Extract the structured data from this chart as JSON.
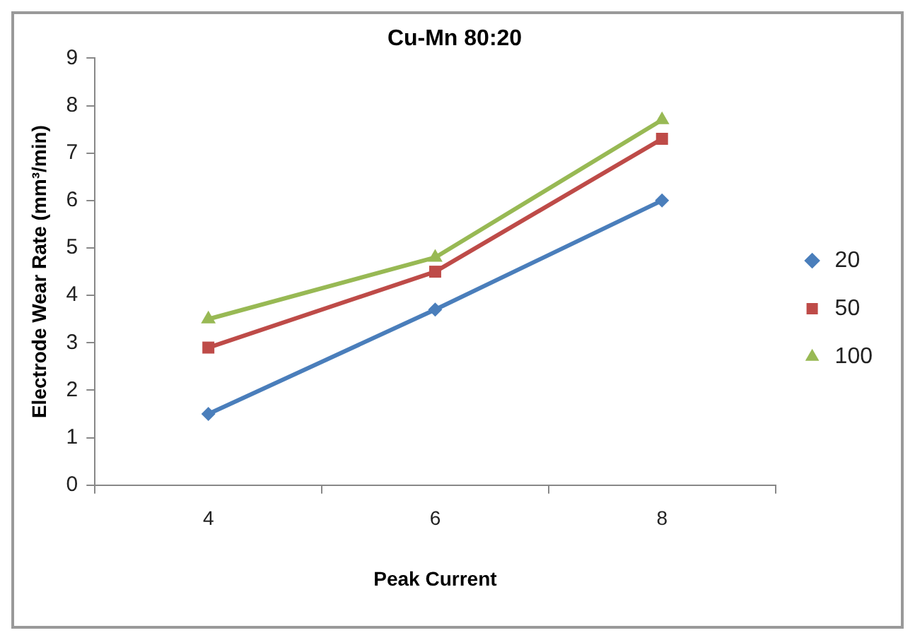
{
  "chart_data": {
    "type": "line",
    "title": "Cu-Mn 80:20",
    "xlabel": "Peak Current",
    "ylabel": "Electrode Wear Rate (mm³/min)",
    "categories": [
      "4",
      "6",
      "8"
    ],
    "series": [
      {
        "name": "20",
        "color": "#4a7ebb",
        "marker": "diamond",
        "values": [
          1.5,
          3.7,
          6.0
        ]
      },
      {
        "name": "50",
        "color": "#be4b48",
        "marker": "square",
        "values": [
          2.9,
          4.5,
          7.3
        ]
      },
      {
        "name": "100",
        "color": "#98b954",
        "marker": "triangle",
        "values": [
          3.5,
          4.8,
          7.7
        ]
      }
    ],
    "ylim": [
      0,
      9
    ],
    "yticks": [
      0,
      1,
      2,
      3,
      4,
      5,
      6,
      7,
      8,
      9
    ],
    "grid": false,
    "legend": "right",
    "line_style": "solid"
  }
}
